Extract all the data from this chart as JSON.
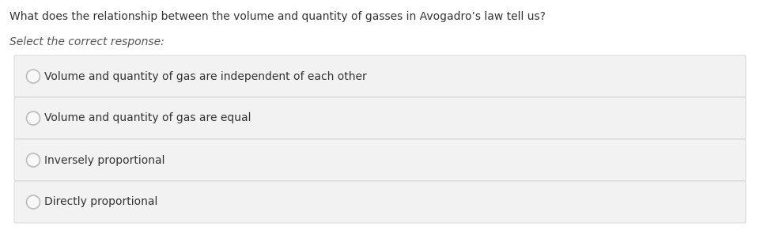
{
  "background_color": "#ffffff",
  "question_text": "What does the relationship between the volume and quantity of gasses in Avogadro’s law tell us?",
  "question_fontsize": 10.0,
  "question_color": "#333333",
  "subtitle_text": "Select the correct response:",
  "subtitle_fontsize": 10.0,
  "subtitle_color": "#555555",
  "options": [
    "Volume and quantity of gas are independent of each other",
    "Volume and quantity of gas are equal",
    "Inversely proportional",
    "Directly proportional"
  ],
  "option_fontsize": 10.0,
  "option_color": "#333333",
  "option_bg_color": "#f2f2f2",
  "option_border_color": "#cccccc",
  "circle_edge_color": "#bbbbbb",
  "circle_fill_color": "#f8f8f8"
}
